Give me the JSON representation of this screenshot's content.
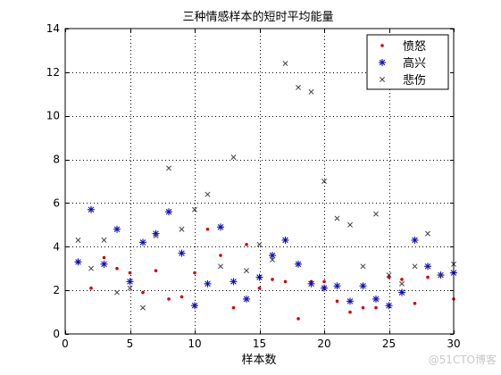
{
  "chart_data": {
    "type": "scatter",
    "title": "三种情感样本的短时平均能量",
    "xlabel": "样本数",
    "ylabel": "",
    "xlim": [
      0,
      30
    ],
    "ylim": [
      0,
      14
    ],
    "xticks": [
      0,
      5,
      10,
      15,
      20,
      25,
      30
    ],
    "yticks": [
      0,
      2,
      4,
      6,
      8,
      10,
      12,
      14
    ],
    "grid": true,
    "legend_position": "top-right",
    "series": [
      {
        "name": "愤怒",
        "marker": "dot",
        "color": "#d40000",
        "x": [
          1,
          2,
          3,
          4,
          5,
          6,
          7,
          8,
          9,
          10,
          11,
          12,
          13,
          14,
          15,
          16,
          17,
          18,
          19,
          20,
          21,
          22,
          23,
          24,
          25,
          26,
          27,
          28,
          29,
          30
        ],
        "y": [
          3.3,
          2.1,
          3.5,
          3.0,
          2.8,
          1.9,
          2.9,
          1.6,
          1.7,
          2.8,
          4.8,
          3.6,
          1.2,
          4.1,
          2.1,
          2.5,
          2.4,
          0.7,
          2.4,
          2.4,
          1.5,
          1.0,
          1.2,
          1.2,
          2.6,
          2.5,
          1.4,
          2.6,
          2.7,
          1.6
        ]
      },
      {
        "name": "高兴",
        "marker": "star",
        "color": "#1010b8",
        "x": [
          1,
          2,
          3,
          4,
          5,
          6,
          7,
          8,
          9,
          10,
          11,
          12,
          13,
          14,
          15,
          16,
          17,
          18,
          19,
          20,
          21,
          22,
          23,
          24,
          25,
          26,
          27,
          28,
          29,
          30
        ],
        "y": [
          3.3,
          5.7,
          3.2,
          4.8,
          2.4,
          4.2,
          4.6,
          5.6,
          3.7,
          1.3,
          2.3,
          4.9,
          2.4,
          1.6,
          2.6,
          3.6,
          4.3,
          3.2,
          2.3,
          2.1,
          2.2,
          1.5,
          2.2,
          1.6,
          1.3,
          1.9,
          4.3,
          3.1,
          2.7,
          2.8
        ]
      },
      {
        "name": "悲伤",
        "marker": "x",
        "color": "#404040",
        "x": [
          1,
          2,
          3,
          4,
          5,
          6,
          7,
          8,
          9,
          10,
          11,
          12,
          13,
          14,
          15,
          16,
          17,
          18,
          19,
          20,
          21,
          22,
          23,
          24,
          25,
          26,
          27,
          28,
          29,
          30
        ],
        "y": [
          4.3,
          3.0,
          4.3,
          1.9,
          2.1,
          1.2,
          4.5,
          7.6,
          4.8,
          5.7,
          6.4,
          3.1,
          8.1,
          2.9,
          4.1,
          3.4,
          12.4,
          11.3,
          11.1,
          7.0,
          5.3,
          5.0,
          3.1,
          5.5,
          2.7,
          2.3,
          3.1,
          4.6,
          2.7,
          3.2
        ]
      }
    ]
  },
  "watermark": "@51CTO博客"
}
